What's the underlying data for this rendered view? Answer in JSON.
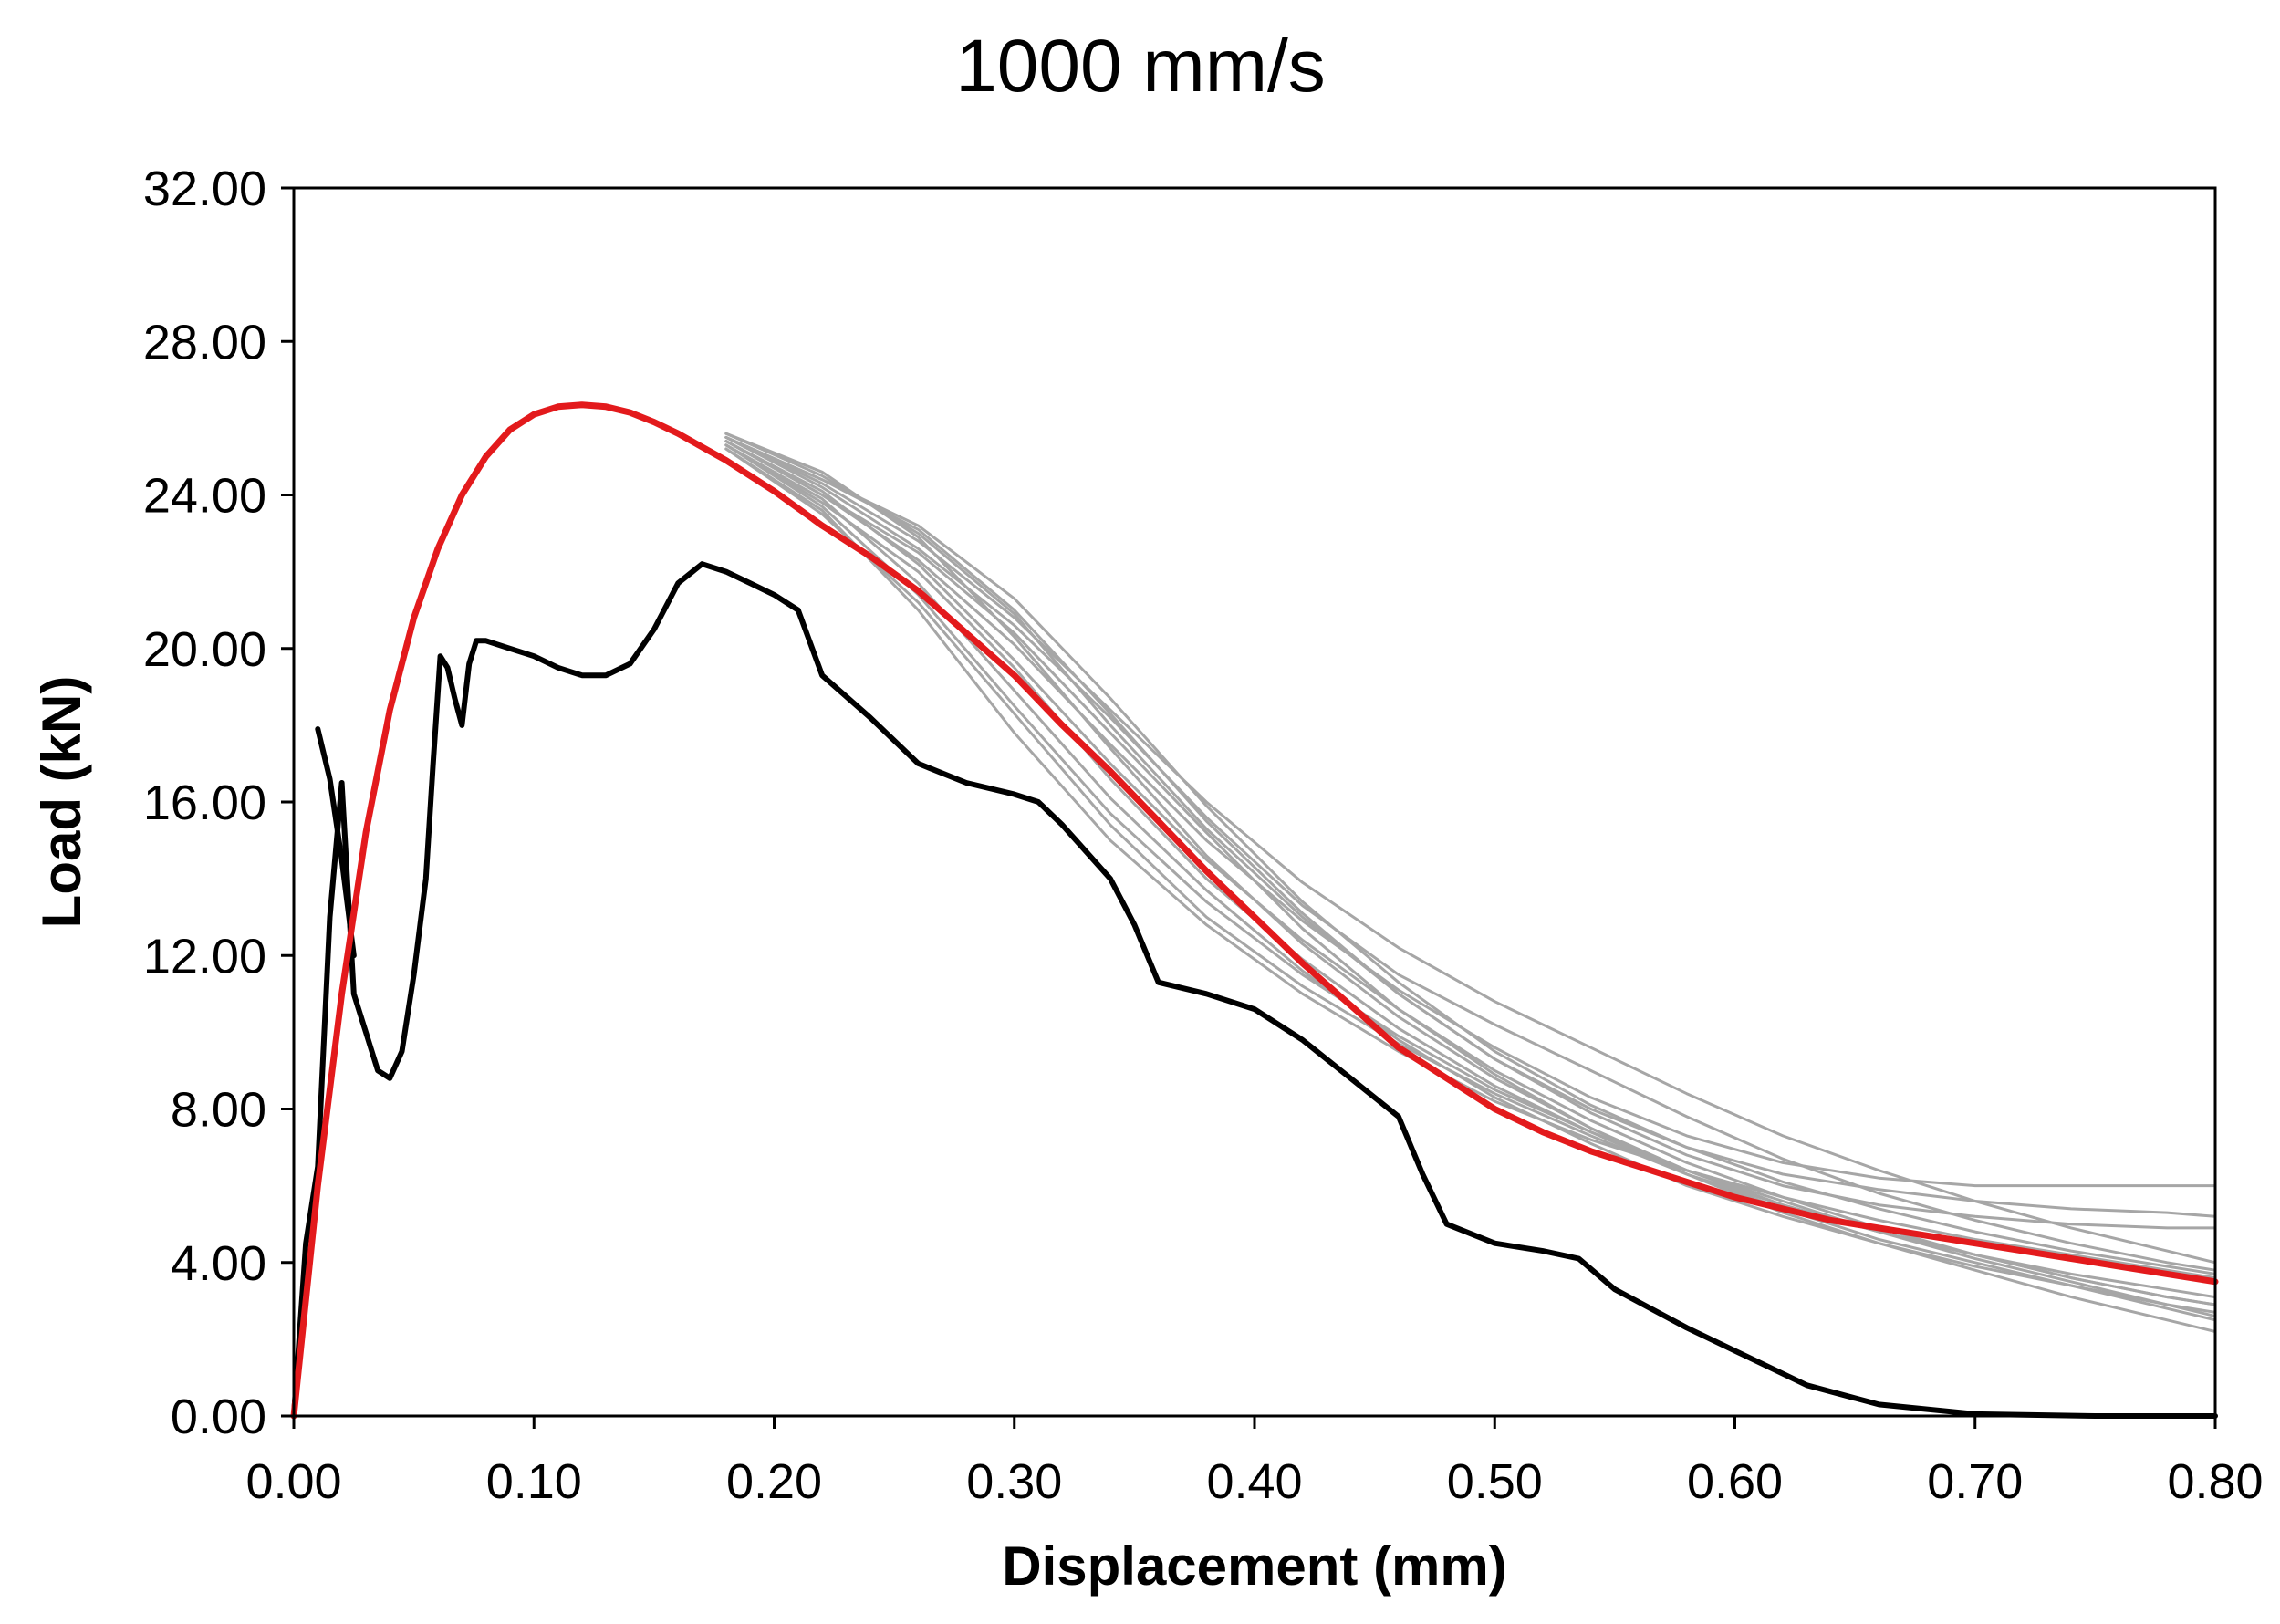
{
  "chart_data": {
    "type": "line",
    "title": "1000 mm/s",
    "xlabel": "Displacement (mm)",
    "ylabel": "Load (kN)",
    "xlim": [
      0,
      0.8
    ],
    "ylim": [
      0,
      32
    ],
    "grid": false,
    "x_ticks": [
      "0.00",
      "0.10",
      "0.20",
      "0.30",
      "0.40",
      "0.50",
      "0.60",
      "0.70",
      "0.80"
    ],
    "y_ticks": [
      "0.00",
      "4.00",
      "8.00",
      "12.00",
      "16.00",
      "20.00",
      "24.00",
      "28.00",
      "32.00"
    ],
    "colors": {
      "red": "#e31a1c",
      "black": "#000000",
      "gray": "#a6a6a6"
    },
    "series": [
      {
        "color": "red",
        "x": [
          0.0,
          0.01,
          0.02,
          0.03,
          0.04,
          0.05,
          0.06,
          0.07,
          0.08,
          0.09,
          0.1,
          0.11,
          0.12,
          0.13,
          0.14,
          0.15,
          0.16,
          0.18,
          0.2,
          0.22,
          0.24,
          0.26,
          0.28,
          0.3,
          0.32,
          0.34,
          0.36,
          0.38,
          0.4,
          0.42,
          0.44,
          0.46,
          0.48,
          0.5,
          0.52,
          0.54,
          0.56,
          0.58,
          0.6,
          0.62,
          0.64,
          0.66,
          0.68,
          0.7,
          0.72,
          0.74,
          0.76,
          0.78,
          0.8
        ],
        "y": [
          0.0,
          6.0,
          11.0,
          15.2,
          18.4,
          20.8,
          22.6,
          24.0,
          25.0,
          25.7,
          26.1,
          26.3,
          26.35,
          26.3,
          26.15,
          25.9,
          25.6,
          24.9,
          24.1,
          23.2,
          22.4,
          21.5,
          20.4,
          19.3,
          18.0,
          16.8,
          15.5,
          14.2,
          13.0,
          11.8,
          10.7,
          9.6,
          8.8,
          8.0,
          7.4,
          6.9,
          6.5,
          6.1,
          5.7,
          5.4,
          5.1,
          4.9,
          4.7,
          4.5,
          4.3,
          4.1,
          3.9,
          3.7,
          3.5
        ]
      },
      {
        "color": "black",
        "x": [
          0.0,
          0.005,
          0.01,
          0.015,
          0.02,
          0.025,
          0.03,
          0.035,
          0.04,
          0.045,
          0.05,
          0.055,
          0.058,
          0.061,
          0.064,
          0.067,
          0.07,
          0.073,
          0.076,
          0.08,
          0.09,
          0.1,
          0.11,
          0.12,
          0.13,
          0.14,
          0.15,
          0.16,
          0.17,
          0.18,
          0.19,
          0.2,
          0.21,
          0.22,
          0.24,
          0.26,
          0.28,
          0.3,
          0.31,
          0.32,
          0.34,
          0.35,
          0.36,
          0.38,
          0.4,
          0.42,
          0.44,
          0.46,
          0.47,
          0.48,
          0.5,
          0.52,
          0.535,
          0.55,
          0.58,
          0.61,
          0.63,
          0.66,
          0.7,
          0.75,
          0.8
        ],
        "y": [
          0.0,
          4.5,
          6.5,
          13.0,
          16.5,
          11.0,
          10.0,
          9.0,
          8.8,
          9.5,
          11.5,
          14.0,
          17.0,
          19.8,
          19.5,
          18.7,
          18.0,
          19.6,
          20.2,
          20.2,
          20.0,
          19.8,
          19.5,
          19.3,
          19.3,
          19.6,
          20.5,
          21.7,
          22.2,
          22.0,
          21.7,
          21.4,
          21.0,
          19.3,
          18.2,
          17.0,
          16.5,
          16.2,
          16.0,
          15.4,
          14.0,
          12.8,
          11.3,
          11.0,
          10.6,
          9.8,
          8.8,
          7.8,
          6.3,
          5.0,
          4.5,
          4.3,
          4.1,
          3.3,
          2.3,
          1.4,
          0.8,
          0.3,
          0.05,
          0.0,
          0.0
        ]
      },
      {
        "color": "black",
        "x": [
          0.01,
          0.015,
          0.02,
          0.025
        ],
        "y": [
          17.9,
          16.6,
          14.5,
          12.0
        ]
      },
      {
        "color": "gray",
        "x": [
          0.18,
          0.22,
          0.26,
          0.3,
          0.34,
          0.38,
          0.42,
          0.46,
          0.5,
          0.54,
          0.58,
          0.62,
          0.66,
          0.7,
          0.74,
          0.78,
          0.8
        ],
        "y": [
          25.3,
          23.9,
          21.7,
          18.9,
          16.1,
          13.7,
          11.6,
          9.8,
          8.3,
          7.1,
          6.0,
          5.2,
          4.5,
          3.9,
          3.4,
          2.9,
          2.7
        ]
      },
      {
        "color": "gray",
        "x": [
          0.18,
          0.22,
          0.26,
          0.3,
          0.34,
          0.38,
          0.42,
          0.46,
          0.5,
          0.54,
          0.58,
          0.62,
          0.66,
          0.7,
          0.74,
          0.78,
          0.8
        ],
        "y": [
          25.5,
          24.4,
          23.2,
          21.3,
          18.7,
          15.9,
          13.4,
          11.3,
          9.5,
          8.1,
          7.0,
          6.1,
          5.4,
          4.8,
          4.3,
          3.9,
          3.7
        ]
      },
      {
        "color": "gray",
        "x": [
          0.18,
          0.22,
          0.26,
          0.3,
          0.34,
          0.38,
          0.42,
          0.46,
          0.5,
          0.54,
          0.58,
          0.62,
          0.66,
          0.7,
          0.74,
          0.78,
          0.8
        ],
        "y": [
          25.4,
          24.0,
          22.3,
          20.1,
          17.5,
          15.0,
          12.9,
          11.1,
          9.6,
          8.3,
          7.3,
          6.6,
          6.2,
          6.0,
          6.0,
          6.0,
          6.0
        ]
      },
      {
        "color": "gray",
        "x": [
          0.18,
          0.22,
          0.26,
          0.3,
          0.34,
          0.38,
          0.42,
          0.46,
          0.5,
          0.54,
          0.58,
          0.62,
          0.66,
          0.7,
          0.74,
          0.78,
          0.8
        ],
        "y": [
          25.6,
          24.6,
          22.9,
          20.3,
          17.4,
          14.6,
          12.3,
          10.4,
          8.8,
          7.5,
          6.4,
          5.5,
          4.8,
          4.2,
          3.6,
          3.1,
          2.9
        ]
      },
      {
        "color": "gray",
        "x": [
          0.18,
          0.22,
          0.26,
          0.3,
          0.34,
          0.38,
          0.42,
          0.46,
          0.5,
          0.54,
          0.58,
          0.62,
          0.66,
          0.7,
          0.74,
          0.78,
          0.8
        ],
        "y": [
          25.2,
          23.6,
          21.0,
          17.8,
          15.0,
          12.8,
          11.0,
          9.5,
          8.2,
          7.2,
          6.4,
          5.7,
          5.1,
          4.6,
          4.2,
          3.8,
          3.6
        ]
      },
      {
        "color": "gray",
        "x": [
          0.18,
          0.22,
          0.26,
          0.3,
          0.34,
          0.38,
          0.42,
          0.46,
          0.5,
          0.54,
          0.58,
          0.62,
          0.66,
          0.7,
          0.74,
          0.78,
          0.8
        ],
        "y": [
          25.5,
          24.2,
          22.6,
          20.6,
          18.2,
          15.6,
          13.3,
          11.5,
          10.2,
          9.0,
          7.8,
          6.7,
          5.8,
          5.1,
          4.5,
          4.0,
          3.8
        ]
      },
      {
        "color": "gray",
        "x": [
          0.18,
          0.22,
          0.26,
          0.3,
          0.34,
          0.38,
          0.42,
          0.46,
          0.5,
          0.54,
          0.58,
          0.62,
          0.66,
          0.7,
          0.74,
          0.78,
          0.8
        ],
        "y": [
          25.3,
          23.8,
          22.0,
          19.5,
          16.6,
          14.0,
          11.9,
          10.1,
          8.6,
          7.4,
          6.3,
          5.4,
          4.6,
          4.0,
          3.4,
          2.8,
          2.5
        ]
      },
      {
        "color": "gray",
        "x": [
          0.18,
          0.22,
          0.26,
          0.3,
          0.34,
          0.38,
          0.42,
          0.46,
          0.5,
          0.54,
          0.58,
          0.62,
          0.66,
          0.7,
          0.74,
          0.78,
          0.8
        ],
        "y": [
          25.6,
          24.5,
          23.0,
          20.9,
          18.0,
          15.3,
          13.0,
          11.0,
          9.3,
          7.9,
          6.8,
          6.0,
          5.5,
          5.2,
          5.0,
          4.9,
          4.9
        ]
      },
      {
        "color": "gray",
        "x": [
          0.18,
          0.22,
          0.26,
          0.3,
          0.34,
          0.38,
          0.42,
          0.46,
          0.5,
          0.54,
          0.58,
          0.62,
          0.66,
          0.7,
          0.74,
          0.78,
          0.8
        ],
        "y": [
          25.4,
          24.1,
          22.2,
          19.7,
          17.0,
          14.5,
          12.4,
          10.6,
          9.0,
          7.7,
          6.6,
          5.7,
          4.9,
          4.2,
          3.6,
          3.1,
          2.9
        ]
      },
      {
        "color": "gray",
        "x": [
          0.18,
          0.22,
          0.26,
          0.3,
          0.34,
          0.38,
          0.42,
          0.46,
          0.5,
          0.54,
          0.58,
          0.62,
          0.66,
          0.7,
          0.74,
          0.78,
          0.8
        ],
        "y": [
          25.5,
          24.3,
          22.8,
          20.8,
          18.4,
          16.0,
          13.9,
          12.2,
          10.8,
          9.6,
          8.4,
          7.3,
          6.4,
          5.6,
          4.9,
          4.3,
          4.0
        ]
      },
      {
        "color": "gray",
        "x": [
          0.18,
          0.22,
          0.26,
          0.3,
          0.34,
          0.38,
          0.42,
          0.46,
          0.5,
          0.54,
          0.58,
          0.62,
          0.66,
          0.7,
          0.74,
          0.78,
          0.8
        ],
        "y": [
          25.3,
          23.7,
          21.4,
          18.5,
          15.7,
          13.4,
          11.5,
          9.9,
          8.5,
          7.4,
          6.4,
          5.6,
          4.8,
          4.1,
          3.5,
          2.9,
          2.6
        ]
      },
      {
        "color": "gray",
        "x": [
          0.18,
          0.22,
          0.26,
          0.3,
          0.34,
          0.38,
          0.42,
          0.46,
          0.5,
          0.54,
          0.58,
          0.62,
          0.66,
          0.7,
          0.74,
          0.78,
          0.8
        ],
        "y": [
          25.4,
          24.0,
          22.5,
          20.4,
          17.8,
          15.2,
          12.7,
          10.6,
          8.9,
          7.5,
          6.3,
          5.3,
          4.5,
          3.8,
          3.1,
          2.5,
          2.2
        ]
      },
      {
        "color": "gray",
        "x": [
          0.18,
          0.22,
          0.26,
          0.3,
          0.34,
          0.38,
          0.42,
          0.46,
          0.5,
          0.54,
          0.58,
          0.62,
          0.66,
          0.7,
          0.74,
          0.78,
          0.8
        ],
        "y": [
          25.5,
          24.4,
          23.1,
          21.0,
          18.3,
          15.5,
          13.1,
          11.0,
          9.3,
          8.0,
          7.0,
          6.3,
          5.9,
          5.6,
          5.4,
          5.3,
          5.2
        ]
      },
      {
        "color": "gray",
        "x": [
          0.18,
          0.22,
          0.26,
          0.3,
          0.34,
          0.38,
          0.42,
          0.46,
          0.5,
          0.54,
          0.58,
          0.62,
          0.66,
          0.7,
          0.74,
          0.78,
          0.8
        ],
        "y": [
          25.2,
          23.5,
          21.2,
          18.3,
          15.4,
          13.0,
          11.2,
          9.7,
          8.4,
          7.3,
          6.3,
          5.5,
          4.8,
          4.2,
          3.7,
          3.3,
          3.1
        ]
      }
    ]
  }
}
